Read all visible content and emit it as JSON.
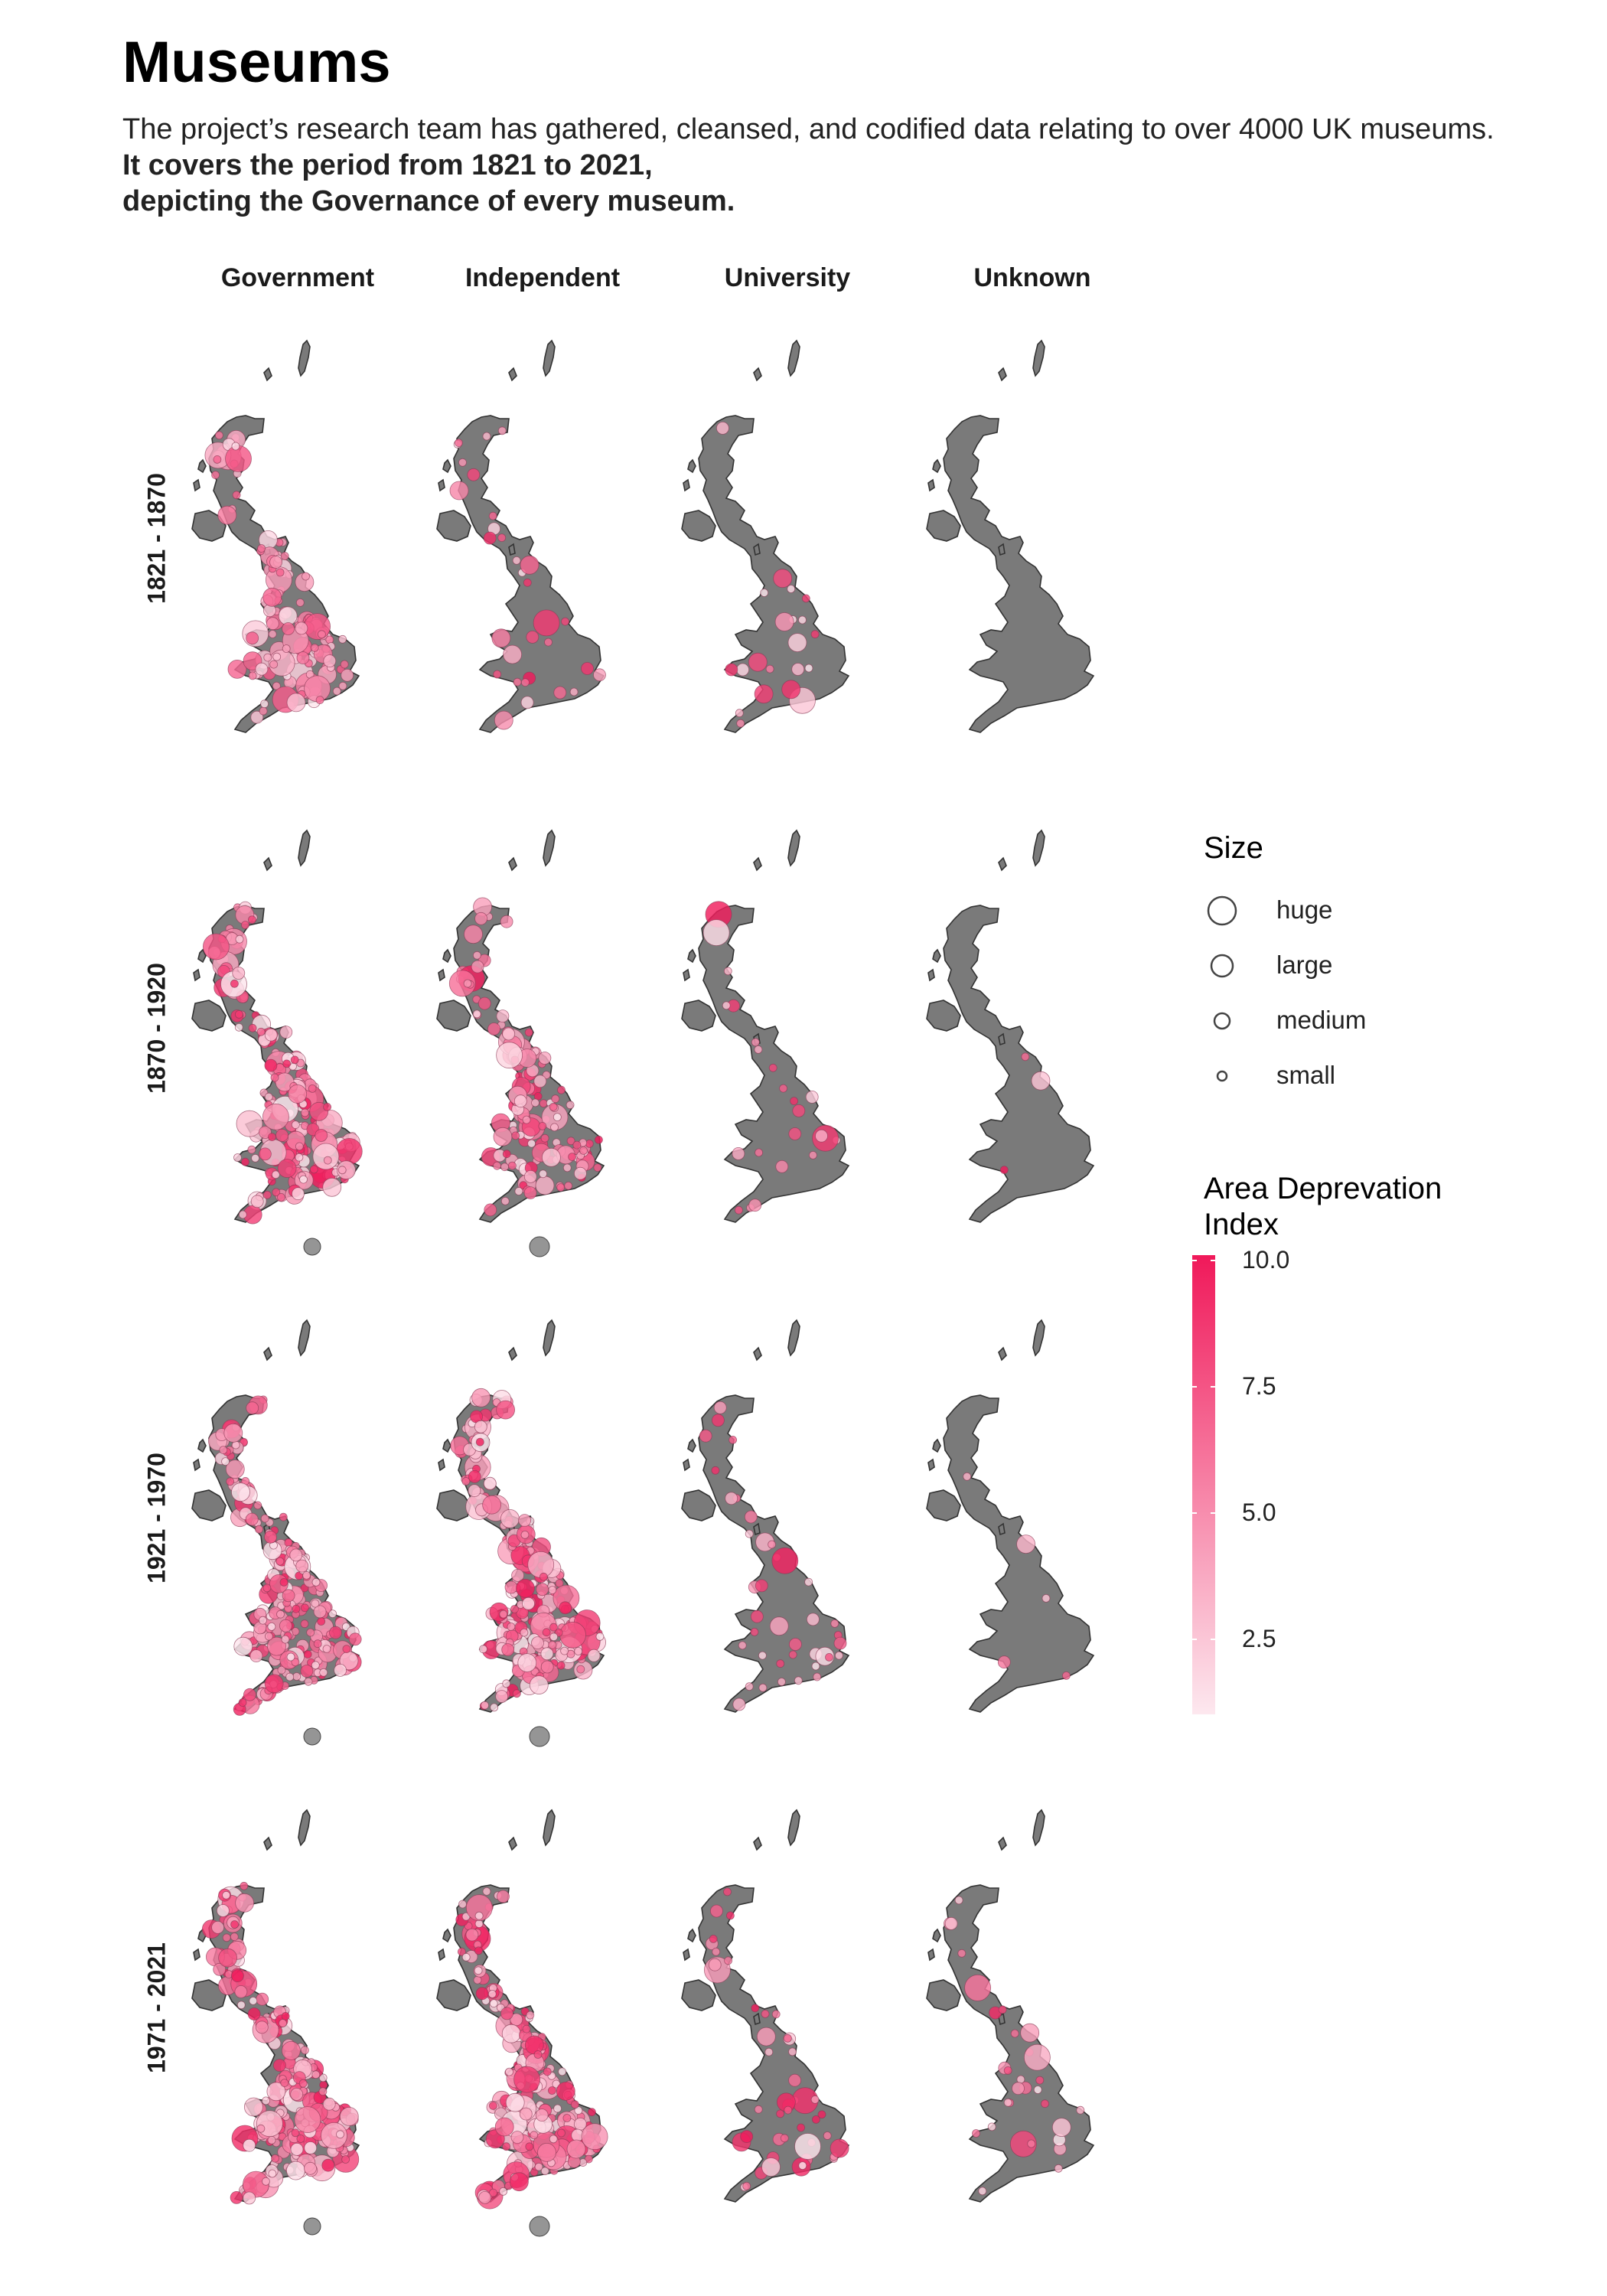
{
  "title": "Museums",
  "subtitle_plain": "The project’s research team has gathered, cleansed, and codified data relating to over 4000 UK museums. ",
  "subtitle_bold_line1": "It covers the period from 1821 to 2021,",
  "subtitle_bold_line2": "depicting the Governance of every museum.",
  "columns": [
    "Government",
    "Independent",
    "University",
    "Unknown"
  ],
  "rows": [
    "1821 - 1870",
    "1870 - 1920",
    "1921 - 1970",
    "1971 - 2021"
  ],
  "legend": {
    "size_title": "Size",
    "size_items": [
      "huge",
      "large",
      "medium",
      "small"
    ],
    "color_title_line1": "Area Deprevation",
    "color_title_line2": "Index",
    "color_ticks": [
      "10.0",
      "7.5",
      "5.0",
      "2.5"
    ],
    "color_range": [
      1,
      10
    ],
    "color_low": "#fde8ef",
    "color_high": "#f0195a",
    "missing_color": "#7a7a7a"
  },
  "colors": {
    "land": "#7a7a7a",
    "land_stroke": "#333333",
    "point_stroke": "#8a3a55"
  },
  "panel_density": {
    "Government": [
      0.55,
      0.85,
      0.9,
      0.95
    ],
    "Independent": [
      0.12,
      0.55,
      1.0,
      1.0
    ],
    "University": [
      0.08,
      0.09,
      0.15,
      0.18
    ],
    "Unknown": [
      0.0,
      0.01,
      0.02,
      0.12
    ]
  }
}
